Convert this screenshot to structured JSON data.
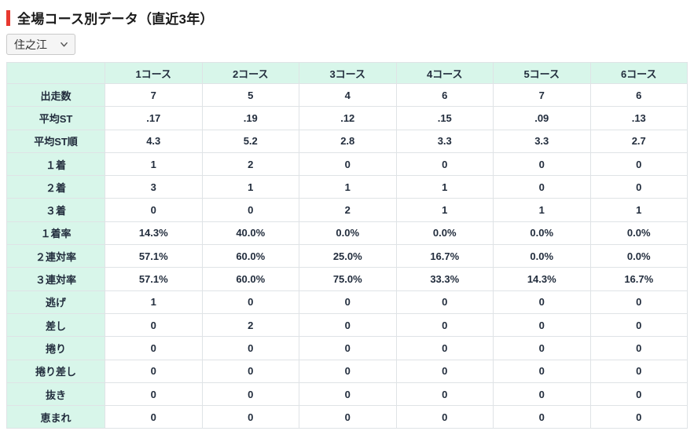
{
  "page": {
    "title": "全場コース別データ（直近3年）",
    "accent_color": "#e8382f"
  },
  "venue_select": {
    "value": "住之江",
    "icon": "chevron-down"
  },
  "table": {
    "corner_label": "",
    "columns": [
      "1コース",
      "2コース",
      "3コース",
      "4コース",
      "5コース",
      "6コース"
    ],
    "rows": [
      {
        "label": "出走数",
        "values": [
          "7",
          "5",
          "4",
          "6",
          "7",
          "6"
        ]
      },
      {
        "label": "平均ST",
        "values": [
          ".17",
          ".19",
          ".12",
          ".15",
          ".09",
          ".13"
        ]
      },
      {
        "label": "平均ST順",
        "values": [
          "4.3",
          "5.2",
          "2.8",
          "3.3",
          "3.3",
          "2.7"
        ]
      },
      {
        "label": "１着",
        "values": [
          "1",
          "2",
          "0",
          "0",
          "0",
          "0"
        ]
      },
      {
        "label": "２着",
        "values": [
          "3",
          "1",
          "1",
          "1",
          "0",
          "0"
        ]
      },
      {
        "label": "３着",
        "values": [
          "0",
          "0",
          "2",
          "1",
          "1",
          "1"
        ]
      },
      {
        "label": "１着率",
        "values": [
          "14.3%",
          "40.0%",
          "0.0%",
          "0.0%",
          "0.0%",
          "0.0%"
        ]
      },
      {
        "label": "２連対率",
        "values": [
          "57.1%",
          "60.0%",
          "25.0%",
          "16.7%",
          "0.0%",
          "0.0%"
        ]
      },
      {
        "label": "３連対率",
        "values": [
          "57.1%",
          "60.0%",
          "75.0%",
          "33.3%",
          "14.3%",
          "16.7%"
        ]
      },
      {
        "label": "逃げ",
        "values": [
          "1",
          "0",
          "0",
          "0",
          "0",
          "0"
        ]
      },
      {
        "label": "差し",
        "values": [
          "0",
          "2",
          "0",
          "0",
          "0",
          "0"
        ]
      },
      {
        "label": "捲り",
        "values": [
          "0",
          "0",
          "0",
          "0",
          "0",
          "0"
        ]
      },
      {
        "label": "捲り差し",
        "values": [
          "0",
          "0",
          "0",
          "0",
          "0",
          "0"
        ]
      },
      {
        "label": "抜き",
        "values": [
          "0",
          "0",
          "0",
          "0",
          "0",
          "0"
        ]
      },
      {
        "label": "恵まれ",
        "values": [
          "0",
          "0",
          "0",
          "0",
          "0",
          "0"
        ]
      }
    ],
    "colors": {
      "header_bg": "#d8f6ea",
      "border": "#dfe3e6",
      "text": "#222d3d"
    }
  }
}
